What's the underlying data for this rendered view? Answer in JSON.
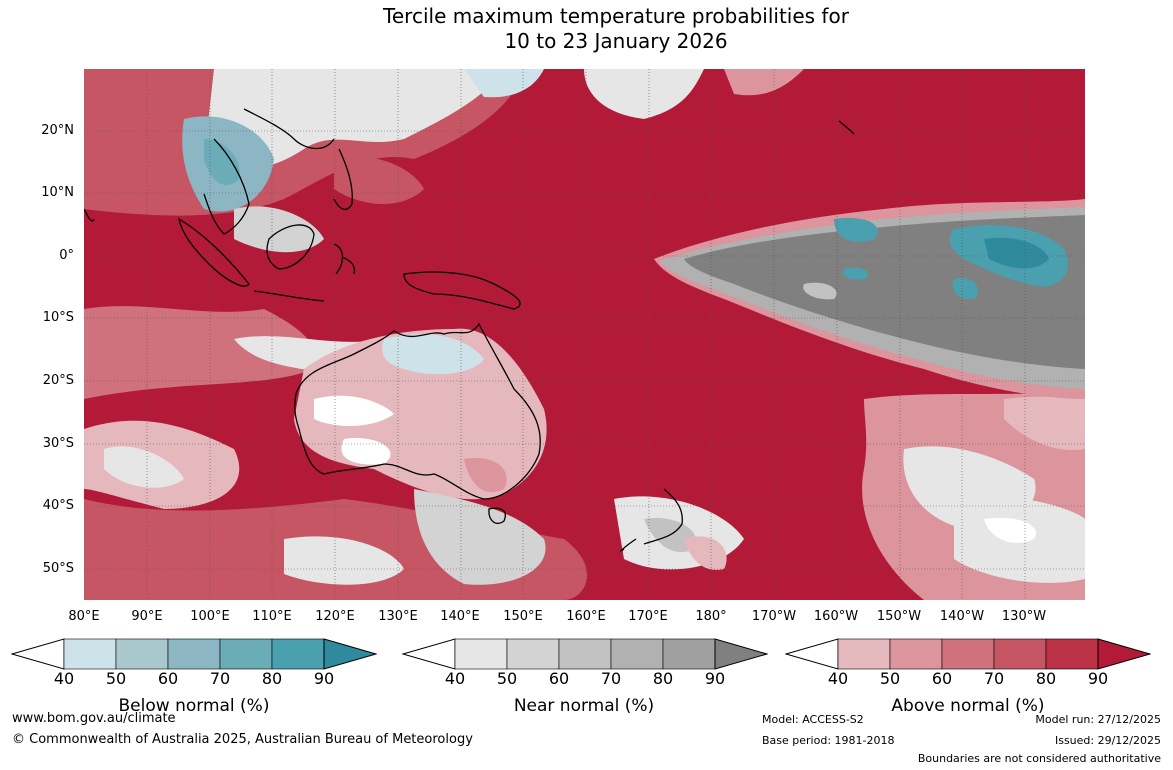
{
  "title": {
    "line1": "Tercile maximum temperature probabilities for",
    "line2": "10 to 23 January 2026"
  },
  "map": {
    "latitude_labels": [
      "20°N",
      "10°N",
      "0°",
      "10°S",
      "20°S",
      "30°S",
      "40°S",
      "50°S"
    ],
    "longitude_labels": [
      "80°E",
      "90°E",
      "100°E",
      "110°E",
      "120°E",
      "130°E",
      "140°E",
      "150°E",
      "160°E",
      "170°E",
      "180°",
      "170°W",
      "160°W",
      "150°W",
      "140°W",
      "130°W"
    ]
  },
  "legends": {
    "below": {
      "title": "Below normal (%)",
      "ticks": [
        "40",
        "50",
        "60",
        "70",
        "80",
        "90"
      ],
      "colors": [
        "#cde3e9",
        "#a9c8cd",
        "#8db6c4",
        "#6aacb8",
        "#4aa0ae",
        "#2e8a9c"
      ]
    },
    "near": {
      "title": "Near normal (%)",
      "ticks": [
        "40",
        "50",
        "60",
        "70",
        "80",
        "90"
      ],
      "colors": [
        "#e6e6e6",
        "#d3d3d3",
        "#c2c2c2",
        "#b1b1b1",
        "#a0a0a0",
        "#808080"
      ]
    },
    "above": {
      "title": "Above normal (%)",
      "ticks": [
        "40",
        "50",
        "60",
        "70",
        "80",
        "90"
      ],
      "colors": [
        "#e5b8be",
        "#dc949d",
        "#d0727d",
        "#c75664",
        "#bb3247",
        "#b21a38"
      ]
    }
  },
  "footer": {
    "website": "www.bom.gov.au/climate",
    "copyright": "© Commonwealth of Australia 2025, Australian Bureau of Meteorology",
    "model": "Model: ACCESS-S2",
    "base_period": "Base period: 1981-2018",
    "model_run": "Model run: 27/12/2025",
    "issued": "Issued: 29/12/2025",
    "disclaimer": "Boundaries are not considered authoritative"
  }
}
